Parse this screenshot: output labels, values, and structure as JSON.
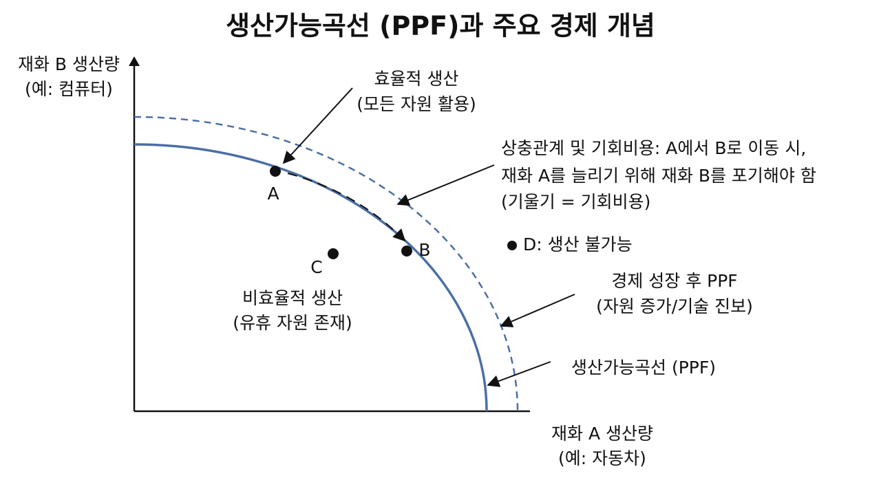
{
  "title": "생산가능곡선 (PPF)과 주요 경제 개념",
  "y_axis": {
    "label": [
      "재화 B 생산량",
      "(예: 컴퓨터)"
    ]
  },
  "x_axis": {
    "label": [
      "재화 A 생산량",
      "(예: 자동차)"
    ]
  },
  "points": {
    "a": "A",
    "b": "B",
    "c": "C",
    "d": "D: 생산 불가능"
  },
  "annotations": {
    "efficient": [
      "효율적 생산",
      "(모든 자원 활용)"
    ],
    "tradeoff": [
      "상충관계 및 기회비용: A에서 B로 이동 시,",
      "재화 A를 늘리기 위해 재화 B를 포기해야 함",
      "(기울기 = 기회비용)"
    ],
    "inefficient": [
      "비효율적 생산",
      "(유휴 자원 존재)"
    ],
    "growth": [
      "경제 성장 후 PPF",
      "(자원 증가/기술 진보)"
    ],
    "ppf": "생산가능곡선 (PPF)"
  }
}
